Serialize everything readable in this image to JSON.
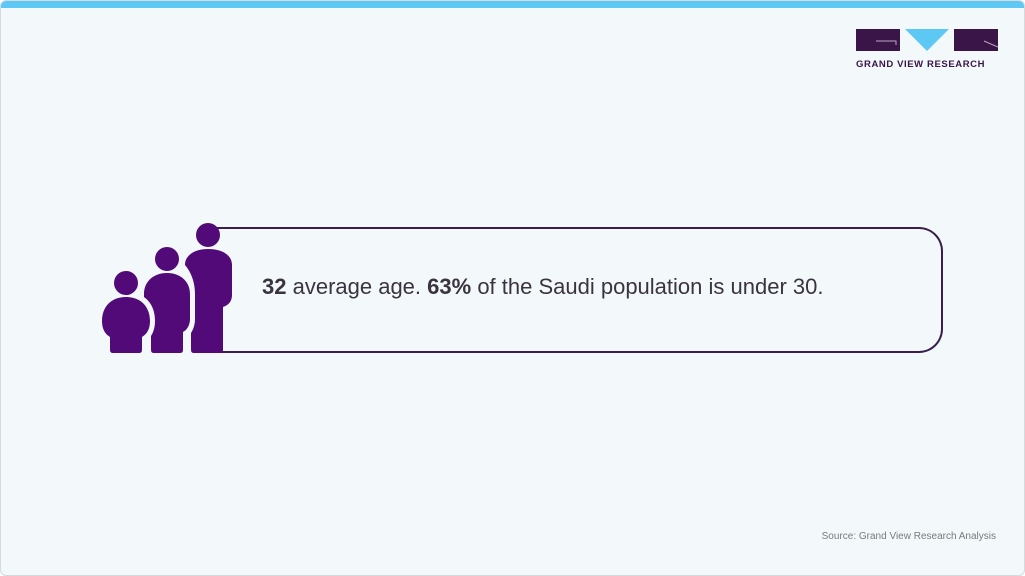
{
  "brand": {
    "name": "GRAND VIEW RESEARCH",
    "colors": {
      "dark": "#3a1547",
      "accent": "#5ec8f4"
    }
  },
  "icon": {
    "name": "family-people-icon",
    "color": "#510a78"
  },
  "statement": {
    "value1": "32",
    "text1": " average age. ",
    "value2": "63%",
    "text2": " of the Saudi population is under 30."
  },
  "source": "Source: Grand View Research Analysis"
}
